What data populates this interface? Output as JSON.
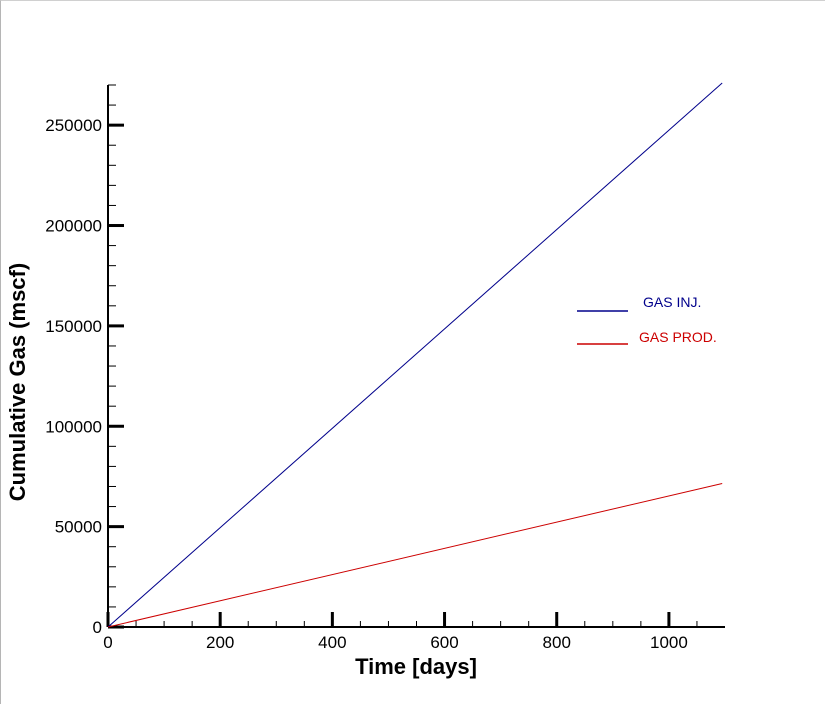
{
  "chart_data": {
    "type": "line",
    "title": "",
    "xlabel": "Time [days]",
    "ylabel": "Cumulative Gas (mscf)",
    "xlim": [
      0,
      1100
    ],
    "ylim": [
      0,
      270000
    ],
    "x_ticks": [
      0,
      200,
      400,
      600,
      800,
      1000
    ],
    "y_ticks": [
      0,
      50000,
      100000,
      150000,
      200000,
      250000
    ],
    "x_tick_labels": [
      "0",
      "200",
      "400",
      "600",
      "800",
      "1000"
    ],
    "y_tick_labels": [
      "0",
      "50000",
      "100000",
      "150000",
      "200000",
      "250000"
    ],
    "grid": false,
    "legend_placement": "right",
    "series": [
      {
        "name": "GAS INJ.",
        "color": "#00008b",
        "x": [
          0,
          1095
        ],
        "y": [
          0,
          271000
        ]
      },
      {
        "name": "GAS PROD.",
        "color": "#cc0000",
        "x": [
          0,
          1095
        ],
        "y": [
          0,
          71500
        ]
      }
    ]
  }
}
